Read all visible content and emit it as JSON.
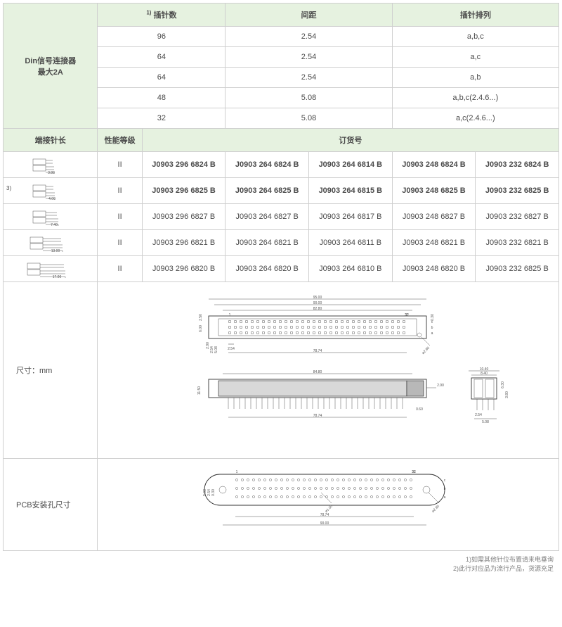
{
  "topHeader": {
    "rowLabel": "Din信号连接器\n最大2A",
    "col1": "插针数",
    "col1_sup": "1)",
    "col2": "间距",
    "col3": "插针排列"
  },
  "topRows": [
    {
      "pins": "96",
      "pitch": "2.54",
      "arr": "a,b,c"
    },
    {
      "pins": "64",
      "pitch": "2.54",
      "arr": "a,c"
    },
    {
      "pins": "64",
      "pitch": "2.54",
      "arr": "a,b"
    },
    {
      "pins": "48",
      "pitch": "5.08",
      "arr": "a,b,c(2.4.6...)"
    },
    {
      "pins": "32",
      "pitch": "5.08",
      "arr": "a,c(2.4.6...)"
    }
  ],
  "midHeader": {
    "c1": "端接针长",
    "c2": "性能等级",
    "c3": "订货号"
  },
  "sideSup": "3)",
  "orderRows": [
    {
      "dim": "3.80",
      "grade": "II",
      "bold": true,
      "codes": [
        "J0903 296 6824 B",
        "J0903 264 6824 B",
        "J0903 264 6814 B",
        "J0903 248 6824 B",
        "J0903 232 6824 B"
      ]
    },
    {
      "dim": "4.00",
      "grade": "II",
      "bold": true,
      "codes": [
        "J0903 296 6825 B",
        "J0903 264 6825 B",
        "J0903 264 6815 B",
        "J0903 248 6825 B",
        "J0903 232 6825 B"
      ]
    },
    {
      "dim": "7.40",
      "grade": "II",
      "bold": false,
      "codes": [
        "J0903 296 6827 B",
        "J0903 264 6827 B",
        "J0903 264 6817 B",
        "J0903 248 6827 B",
        "J0903 232 6827 B"
      ]
    },
    {
      "dim": "13.00",
      "grade": "II",
      "bold": false,
      "codes": [
        "J0903 296 6821 B",
        "J0903 264 6821 B",
        "J0903 264 6811 B",
        "J0903 248 6821 B",
        "J0903 232 6821 B"
      ]
    },
    {
      "dim": "17.00",
      "grade": "II",
      "bold": false,
      "codes": [
        "J0903 296 6820 B",
        "J0903 264 6820 B",
        "J0903 264 6810 B",
        "J0903 248 6820 B",
        "J0903 232 6825 B"
      ]
    }
  ],
  "dimsLabel": "尺寸：mm",
  "pcbLabel": "PCB安装孔尺寸",
  "footnotes": [
    "1)如需其他针位布置请来电垂询",
    "2)此行对应品为流行产品，货源充足"
  ],
  "drawingDims": {
    "top": {
      "w1": "95.00",
      "w2": "90.00",
      "w3": "82.80",
      "pin1": "1",
      "pin32": "32",
      "rowC": "c",
      "rowB": "b",
      "rowA": "a",
      "h1": "6.00",
      "h2": "2.50",
      "p": "2.54",
      "span": "78.74",
      "d": "⌀2.80",
      "r": "0.30"
    },
    "mid": {
      "w": "84.80",
      "span": "78.74",
      "h": "11.50",
      "t1": "2.90",
      "t2": "0.60",
      "sideW1": "10.40",
      "sideW2": "8.40",
      "sideH1": "6.30",
      "sideH2": "3.80",
      "sideP1": "2.54",
      "sideP2": "5.08"
    },
    "pcb": {
      "span": "78.74",
      "w": "90.00",
      "d1": "⌀1.00",
      "d2": "⌀2.80",
      "pin1": "1",
      "pin32": "32",
      "rowC": "c",
      "rowB": "b",
      "rowA": "a",
      "p1": "5.08",
      "p2": "2.54",
      "p3": "0.30"
    }
  }
}
